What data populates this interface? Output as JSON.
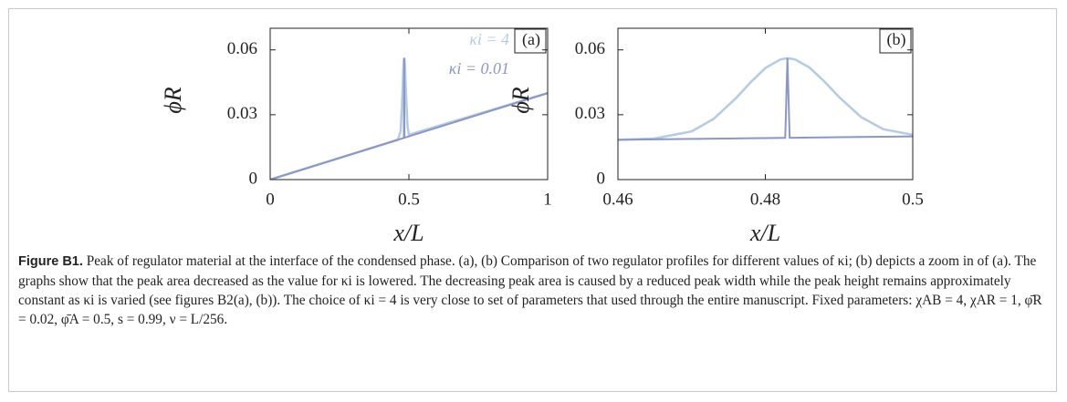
{
  "chart_data": [
    {
      "type": "line",
      "panel_label": "(a)",
      "xlabel": "x/L",
      "ylabel": "ϕR",
      "x": [
        0,
        0.46,
        0.47,
        0.475,
        0.48,
        0.482,
        0.483,
        0.484,
        0.486,
        0.49,
        0.495,
        0.5,
        1
      ],
      "series": [
        {
          "name": "κi = 4",
          "color": "#b4cde4",
          "values": [
            0,
            0.0184,
            0.0223,
            0.0341,
            0.0516,
            0.0555,
            0.056,
            0.0556,
            0.0518,
            0.0382,
            0.0248,
            0.0207,
            0.04
          ]
        },
        {
          "name": "κi = 0.01",
          "color": "#8b96c9",
          "values": [
            0,
            0.0184,
            0.0188,
            0.019,
            0.0192,
            0.01928,
            0.056,
            0.01936,
            0.01944,
            0.0196,
            0.0198,
            0.02,
            0.04
          ]
        }
      ],
      "xlim": [
        0,
        1
      ],
      "xticks": [
        0,
        0.5,
        1
      ],
      "ylim": [
        0,
        0.07
      ],
      "yticks": [
        0,
        0.03,
        0.06
      ],
      "legend": "upper right"
    },
    {
      "type": "line",
      "panel_label": "(b)",
      "xlabel": "x/L",
      "ylabel": "ϕR",
      "x": [
        0.46,
        0.465,
        0.47,
        0.473,
        0.476,
        0.478,
        0.48,
        0.482,
        0.4827,
        0.483,
        0.4833,
        0.484,
        0.486,
        0.488,
        0.49,
        0.493,
        0.496,
        0.5
      ],
      "series": [
        {
          "color": "#b4cde4",
          "values": [
            0.0184,
            0.019,
            0.0223,
            0.0281,
            0.0376,
            0.045,
            0.0516,
            0.0555,
            0.056,
            0.056,
            0.056,
            0.0556,
            0.0518,
            0.0454,
            0.0382,
            0.0289,
            0.0233,
            0.0207
          ]
        },
        {
          "color": "#8b96c9",
          "values": [
            0.0184,
            0.0186,
            0.0188,
            0.01892,
            0.01904,
            0.01912,
            0.0192,
            0.01928,
            0.01931,
            0.056,
            0.01933,
            0.01936,
            0.01944,
            0.01952,
            0.0196,
            0.01972,
            0.01984,
            0.02
          ]
        }
      ],
      "xlim": [
        0.46,
        0.5
      ],
      "xticks": [
        0.46,
        0.48,
        0.5
      ],
      "ylim": [
        0,
        0.07
      ],
      "yticks": [
        0,
        0.03,
        0.06
      ]
    }
  ],
  "caption": {
    "label": "Figure B1.",
    "text": "Peak of regulator material at the interface of the condensed phase. (a), (b) Comparison of two regulator profiles for different values of κi; (b) depicts a zoom in of (a). The graphs show that the peak area decreased as the value for κi is lowered. The decreasing peak area is caused by a reduced peak width while the peak height remains approximately constant as κi is varied (see figures B2(a), (b)). The choice of κi = 4 is very close to set of parameters that used through the entire manuscript. Fixed parameters: χAB = 4, χAR = 1, φ̄R = 0.02, φ̄A = 0.5, s = 0.99, ν = L/256."
  }
}
